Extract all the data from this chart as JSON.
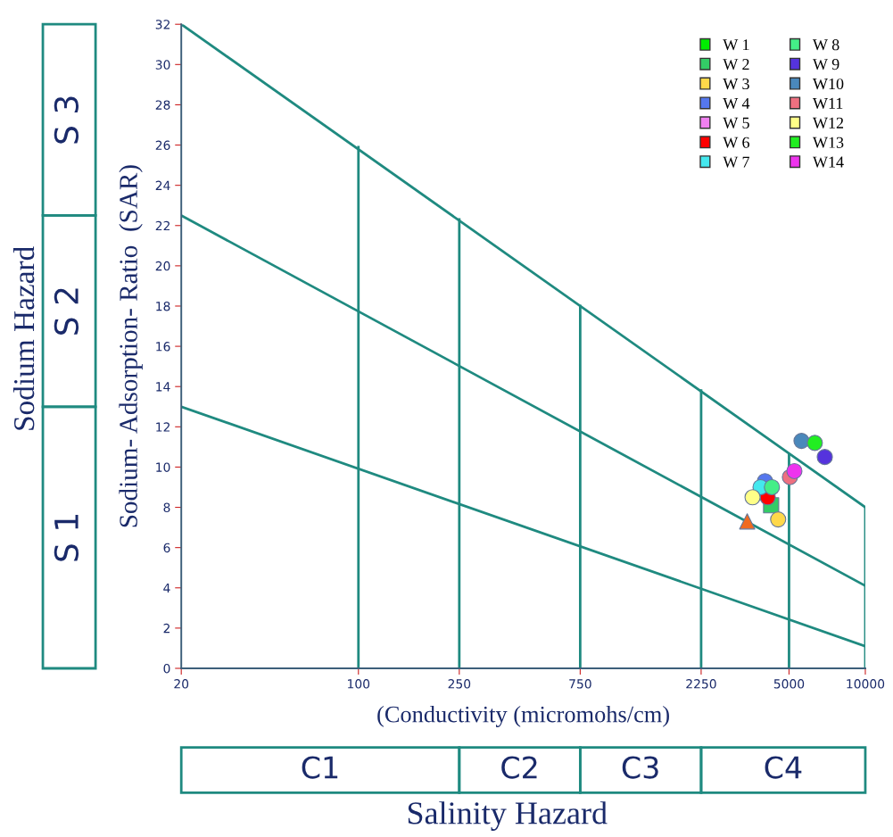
{
  "chart_data": {
    "type": "scatter",
    "xlabel": "(Conductivity (micromohs/cm)",
    "ylabel": "Sodium- Adsorption- Ratio  (SAR)",
    "log": "x",
    "xlim": [
      20,
      10000
    ],
    "xticks": [
      20,
      100,
      250,
      750,
      2250,
      5000,
      10000
    ],
    "ylim": [
      0,
      32
    ],
    "yticks": [
      0,
      2,
      4,
      6,
      8,
      10,
      12,
      14,
      16,
      18,
      20,
      22,
      24,
      26,
      28,
      30,
      32
    ],
    "grid": false,
    "legend": "top right",
    "annotations": [
      "Sodium Hazard",
      "S 1",
      "S 2",
      "S 3",
      "C1",
      "C2",
      "C3",
      "C4",
      "Salinity Hazard"
    ],
    "series": [
      {
        "type": "line",
        "color": "#1f8a80",
        "x": [
          20,
          10000
        ],
        "values": [
          32,
          8
        ]
      },
      {
        "type": "line",
        "color": "#1f8a80",
        "x": [
          20,
          10000
        ],
        "values": [
          22.5,
          4.1
        ]
      },
      {
        "type": "line",
        "color": "#1f8a80",
        "x": [
          20,
          10000
        ],
        "values": [
          13,
          1.1
        ]
      },
      {
        "type": "line",
        "color": "#1f8a80",
        "x": [
          100,
          100
        ],
        "values": [
          0,
          25.9
        ]
      },
      {
        "type": "line",
        "color": "#1f8a80",
        "x": [
          250,
          250
        ],
        "values": [
          0,
          22.3
        ]
      },
      {
        "type": "line",
        "color": "#1f8a80",
        "x": [
          750,
          750
        ],
        "values": [
          0,
          18
        ]
      },
      {
        "type": "line",
        "color": "#1f8a80",
        "x": [
          2250,
          2250
        ],
        "values": [
          0,
          13.8
        ]
      },
      {
        "type": "line",
        "color": "#1f8a80",
        "x": [
          5000,
          5000
        ],
        "values": [
          0,
          10.6
        ]
      },
      {
        "type": "line",
        "color": "#1f8a80",
        "x": [
          10000,
          10000
        ],
        "values": [
          0,
          8
        ]
      },
      {
        "type": "scatter",
        "marker": "triangle",
        "color": "#f06a20",
        "x": [
          3420
        ],
        "values": [
          7.3
        ]
      },
      {
        "name": "W 1",
        "color": "#00ee00",
        "marker": "circle",
        "x": [
          null
        ],
        "values": [
          null
        ]
      },
      {
        "name": "W 2",
        "color": "#33cc66",
        "marker": "square",
        "x": [
          4250
        ],
        "values": [
          8.1
        ]
      },
      {
        "name": "W 3",
        "color": "#ffd84a",
        "marker": "circle",
        "x": [
          4530
        ],
        "values": [
          7.4
        ]
      },
      {
        "name": "W 4",
        "color": "#5577ee",
        "marker": "circle",
        "x": [
          4020
        ],
        "values": [
          9.3
        ]
      },
      {
        "name": "W 5",
        "color": "#f080f0",
        "marker": "circle",
        "x": [
          null
        ],
        "values": [
          null
        ]
      },
      {
        "name": "W 6",
        "color": "#ff0000",
        "marker": "circle",
        "x": [
          4120
        ],
        "values": [
          8.5
        ]
      },
      {
        "name": "W 7",
        "color": "#44e8ee",
        "marker": "circle",
        "x": [
          3860
        ],
        "values": [
          9.0
        ]
      },
      {
        "name": "W 8",
        "color": "#44ee88",
        "marker": "circle",
        "x": [
          4280
        ],
        "values": [
          9.0
        ]
      },
      {
        "name": "W 9",
        "color": "#5533dd",
        "marker": "circle",
        "x": [
          6920
        ],
        "values": [
          10.5
        ]
      },
      {
        "name": "W10",
        "color": "#4a88bb",
        "marker": "circle",
        "x": [
          5600
        ],
        "values": [
          11.3
        ]
      },
      {
        "name": "W11",
        "color": "#ee7080",
        "marker": "circle",
        "x": [
          5040
        ],
        "values": [
          9.5
        ]
      },
      {
        "name": "W12",
        "color": "#ffff88",
        "marker": "circle",
        "x": [
          3590
        ],
        "values": [
          8.5
        ]
      },
      {
        "name": "W13",
        "color": "#22ee22",
        "marker": "circle",
        "x": [
          6320
        ],
        "values": [
          11.2
        ]
      },
      {
        "name": "W14",
        "color": "#ee33ee",
        "marker": "circle",
        "x": [
          5250
        ],
        "values": [
          9.8
        ]
      }
    ]
  }
}
